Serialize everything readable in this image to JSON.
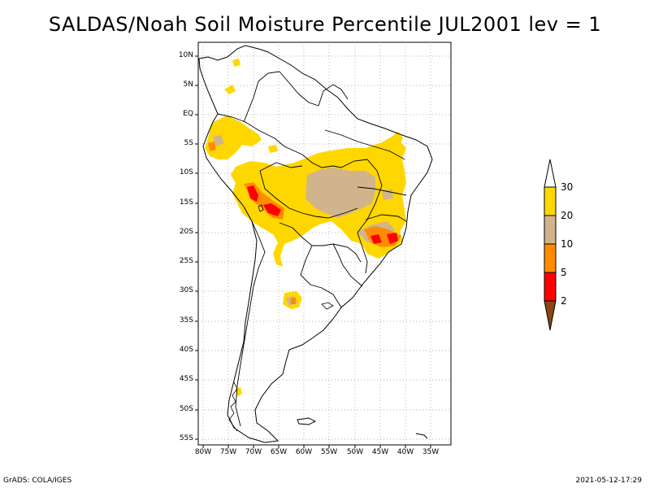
{
  "title": "SALDAS/Noah Soil Moisture Percentile JUL2001 lev = 1",
  "lat_labels": [
    "10N",
    "5N",
    "EQ",
    "5S",
    "10S",
    "15S",
    "20S",
    "25S",
    "30S",
    "35S",
    "40S",
    "45S",
    "50S",
    "55S"
  ],
  "lon_labels": [
    "80W",
    "75W",
    "70W",
    "65W",
    "60W",
    "55W",
    "50W",
    "45W",
    "40W",
    "35W"
  ],
  "colorbar": {
    "labels": [
      "30",
      "20",
      "10",
      "5",
      "2"
    ],
    "colors": {
      "above_30": "#ffffff",
      "c20_30": "#ffd700",
      "c10_20": "#d2b48c",
      "c5_10": "#ff8c00",
      "c2_5": "#ff0000",
      "below_2": "#8b4513"
    }
  },
  "footer": {
    "left": "GrADS: COLA/IGES",
    "right": "2021-05-12-17:29"
  }
}
